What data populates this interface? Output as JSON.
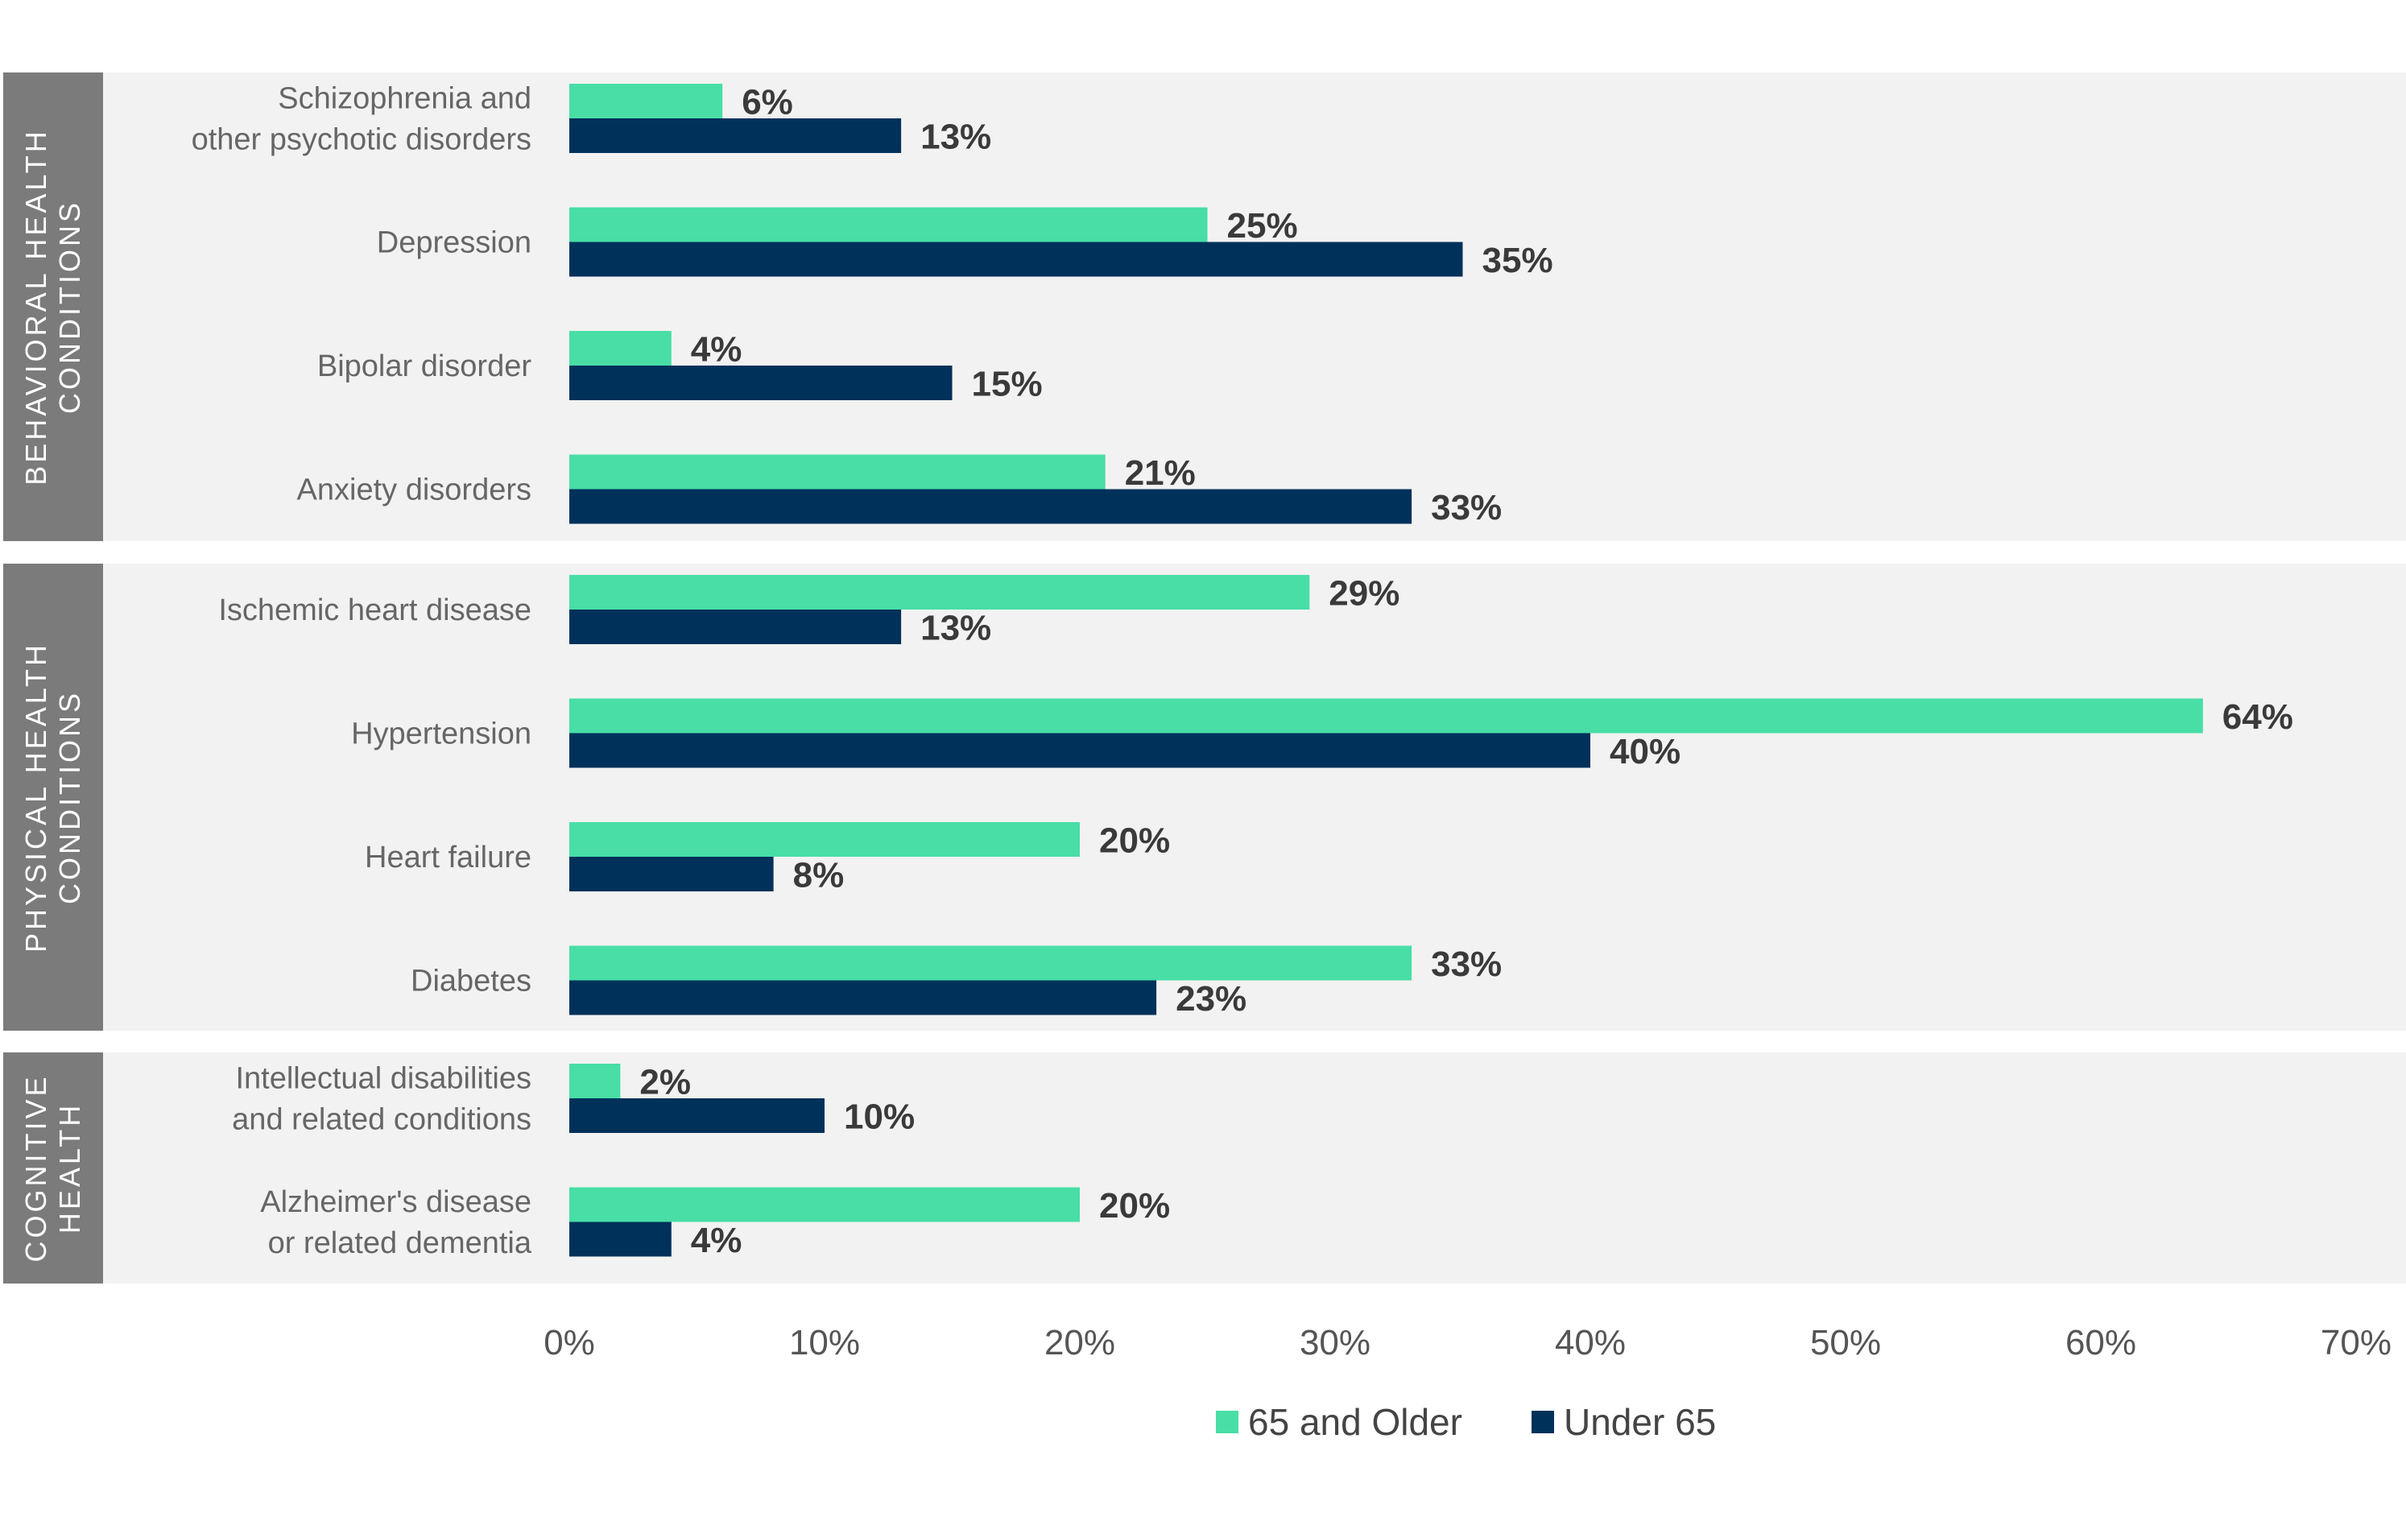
{
  "colors": {
    "older": "#48dea6",
    "under": "#00315a",
    "band": "#f2f2f2",
    "tab": "#7b7b7b"
  },
  "chart_data": {
    "type": "bar",
    "orientation": "horizontal",
    "xlim": [
      0,
      70
    ],
    "x_ticks": [
      "0%",
      "10%",
      "20%",
      "30%",
      "40%",
      "50%",
      "60%",
      "70%"
    ],
    "legend_position": "bottom",
    "series": [
      {
        "name": "65 and Older",
        "color": "#48dea6"
      },
      {
        "name": "Under 65",
        "color": "#00315a"
      }
    ],
    "groups": [
      {
        "label_lines": [
          "BEHAVIORAL HEALTH",
          "CONDITIONS"
        ],
        "categories": [
          {
            "label_lines": [
              "Schizophrenia and",
              "other psychotic disorders"
            ],
            "older": 6,
            "under": 13
          },
          {
            "label_lines": [
              "Depression"
            ],
            "older": 25,
            "under": 35
          },
          {
            "label_lines": [
              "Bipolar disorder"
            ],
            "older": 4,
            "under": 15
          },
          {
            "label_lines": [
              "Anxiety disorders"
            ],
            "older": 21,
            "under": 33
          }
        ]
      },
      {
        "label_lines": [
          "PHYSICAL HEALTH",
          "CONDITIONS"
        ],
        "categories": [
          {
            "label_lines": [
              "Ischemic heart disease"
            ],
            "older": 29,
            "under": 13
          },
          {
            "label_lines": [
              "Hypertension"
            ],
            "older": 64,
            "under": 40
          },
          {
            "label_lines": [
              "Heart failure"
            ],
            "older": 20,
            "under": 8
          },
          {
            "label_lines": [
              "Diabetes"
            ],
            "older": 33,
            "under": 23
          }
        ]
      },
      {
        "label_lines": [
          "COGNITIVE",
          "HEALTH"
        ],
        "categories": [
          {
            "label_lines": [
              "Intellectual disabilities",
              "and related conditions"
            ],
            "older": 2,
            "under": 10
          },
          {
            "label_lines": [
              "Alzheimer's disease",
              "or related dementia"
            ],
            "older": 20,
            "under": 4
          }
        ]
      }
    ]
  }
}
